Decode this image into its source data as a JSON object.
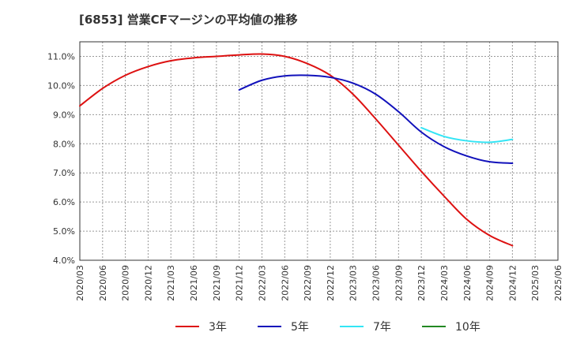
{
  "chart_data": {
    "type": "line",
    "title": "[6853]  営業CFマージンの平均値の推移",
    "xlabel": "",
    "ylabel": "",
    "ylim": [
      4.0,
      11.5
    ],
    "yticks": [
      "4.0%",
      "5.0%",
      "6.0%",
      "7.0%",
      "8.0%",
      "9.0%",
      "10.0%",
      "11.0%"
    ],
    "ytick_values": [
      4,
      5,
      6,
      7,
      8,
      9,
      10,
      11
    ],
    "xticks": [
      "2020/03",
      "2020/06",
      "2020/09",
      "2020/12",
      "2021/03",
      "2021/06",
      "2021/09",
      "2021/12",
      "2022/03",
      "2022/06",
      "2022/09",
      "2022/12",
      "2023/03",
      "2023/06",
      "2023/09",
      "2023/12",
      "2024/03",
      "2024/06",
      "2024/09",
      "2024/12",
      "2025/03",
      "2025/06"
    ],
    "grid": true,
    "legend_position": "bottom",
    "series": [
      {
        "name": "3年",
        "color": "#dd1111",
        "x": [
          "2020/03",
          "2020/06",
          "2020/09",
          "2020/12",
          "2021/03",
          "2021/06",
          "2021/09",
          "2021/12",
          "2022/03",
          "2022/06",
          "2022/09",
          "2022/12",
          "2023/03",
          "2023/06",
          "2023/09",
          "2023/12",
          "2024/03",
          "2024/06",
          "2024/09",
          "2024/12"
        ],
        "values": [
          9.3,
          9.9,
          10.35,
          10.65,
          10.85,
          10.95,
          11.0,
          11.05,
          11.08,
          11.0,
          10.75,
          10.35,
          9.7,
          8.85,
          7.95,
          7.05,
          6.2,
          5.4,
          4.85,
          4.5
        ]
      },
      {
        "name": "5年",
        "color": "#1111bb",
        "x": [
          "2021/12",
          "2022/03",
          "2022/06",
          "2022/09",
          "2022/12",
          "2023/03",
          "2023/06",
          "2023/09",
          "2023/12",
          "2024/03",
          "2024/06",
          "2024/09",
          "2024/12"
        ],
        "values": [
          9.85,
          10.18,
          10.33,
          10.35,
          10.28,
          10.08,
          9.7,
          9.1,
          8.4,
          7.9,
          7.58,
          7.38,
          7.33
        ]
      },
      {
        "name": "7年",
        "color": "#33e5f5",
        "x": [
          "2023/12",
          "2024/03",
          "2024/06",
          "2024/09",
          "2024/12"
        ],
        "values": [
          8.55,
          8.25,
          8.1,
          8.05,
          8.15
        ]
      },
      {
        "name": "10年",
        "color": "#228822",
        "x": [],
        "values": []
      }
    ]
  }
}
